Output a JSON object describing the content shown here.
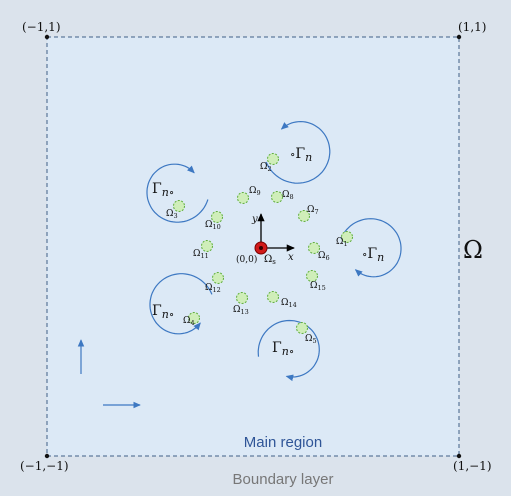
{
  "corners": {
    "top_left": "(−1,1)",
    "top_right": "(1,1)",
    "bottom_left": "(−1,−1)",
    "bottom_right": "(1,−1)"
  },
  "domain_symbol": "Ω",
  "main_region_label": "Main region",
  "boundary_layer_label": "Boundary layer",
  "origin_label": "(0,0)",
  "axes": {
    "x": "x",
    "y": "y",
    "center_label": "Ωs"
  },
  "source_label_prefix": "Ω",
  "subdomains": [
    "1",
    "2",
    "3",
    "4",
    "5",
    "6",
    "7",
    "8",
    "9",
    "10",
    "11",
    "12",
    "13",
    "14",
    "15"
  ],
  "vortex_labels": [
    "∘Γn",
    "Γn∘",
    "∘Γn",
    "Γn∘",
    "Γn∘"
  ],
  "colors": {
    "background": "#dbe3ec",
    "main_region": "#dce9f6",
    "border_dash": "#3f5f86",
    "vortex": "#3d78c2",
    "subdomain_fill": "#cfeeb9",
    "subdomain_stroke": "#5fae3a",
    "origin": "#d11a1a",
    "label_blue": "#2f5597",
    "label_gray": "#777777"
  }
}
